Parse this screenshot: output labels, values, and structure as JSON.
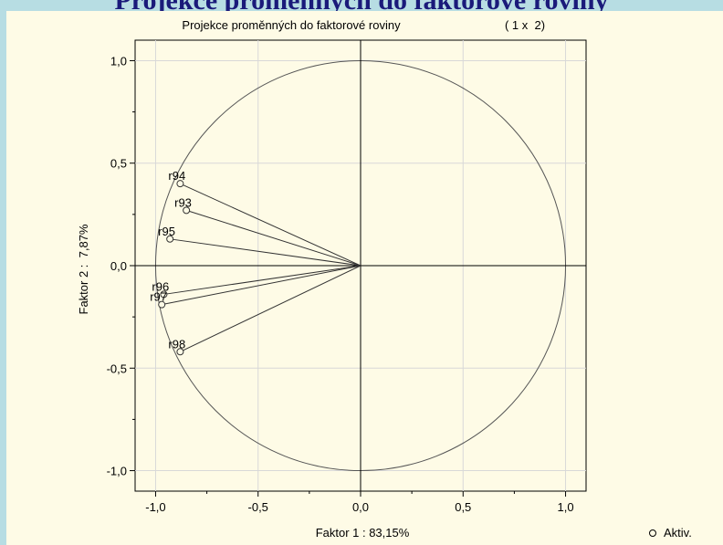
{
  "slide_title": "Projekce proměnných do faktorové roviny",
  "chart_data": {
    "type": "scatter",
    "title": "Projekce proměnných do faktorové roviny",
    "subtitle": "( 1 x  2)",
    "xlabel": "Faktor 1 : 83,15%",
    "ylabel": "Faktor 2 :  7,87%",
    "xlim": [
      -1.1,
      1.1
    ],
    "ylim": [
      -1.1,
      1.1
    ],
    "x_ticks": [
      "-1,0",
      "-0,5",
      "0,0",
      "0,5",
      "1,0"
    ],
    "y_ticks": [
      "1,0",
      "0,5",
      "0,0",
      "-0,5",
      "-1,0"
    ],
    "grid": true,
    "unit_circle": true,
    "legend": {
      "position": "bottom-right",
      "label": "Aktiv."
    },
    "series": [
      {
        "name": "Aktiv.",
        "points": [
          {
            "label": "r93",
            "x": -0.85,
            "y": 0.27
          },
          {
            "label": "r94",
            "x": -0.88,
            "y": 0.4
          },
          {
            "label": "r95",
            "x": -0.93,
            "y": 0.13
          },
          {
            "label": "r96",
            "x": -0.96,
            "y": -0.14
          },
          {
            "label": "r97",
            "x": -0.97,
            "y": -0.19
          },
          {
            "label": "r98",
            "x": -0.88,
            "y": -0.42
          }
        ]
      }
    ]
  }
}
